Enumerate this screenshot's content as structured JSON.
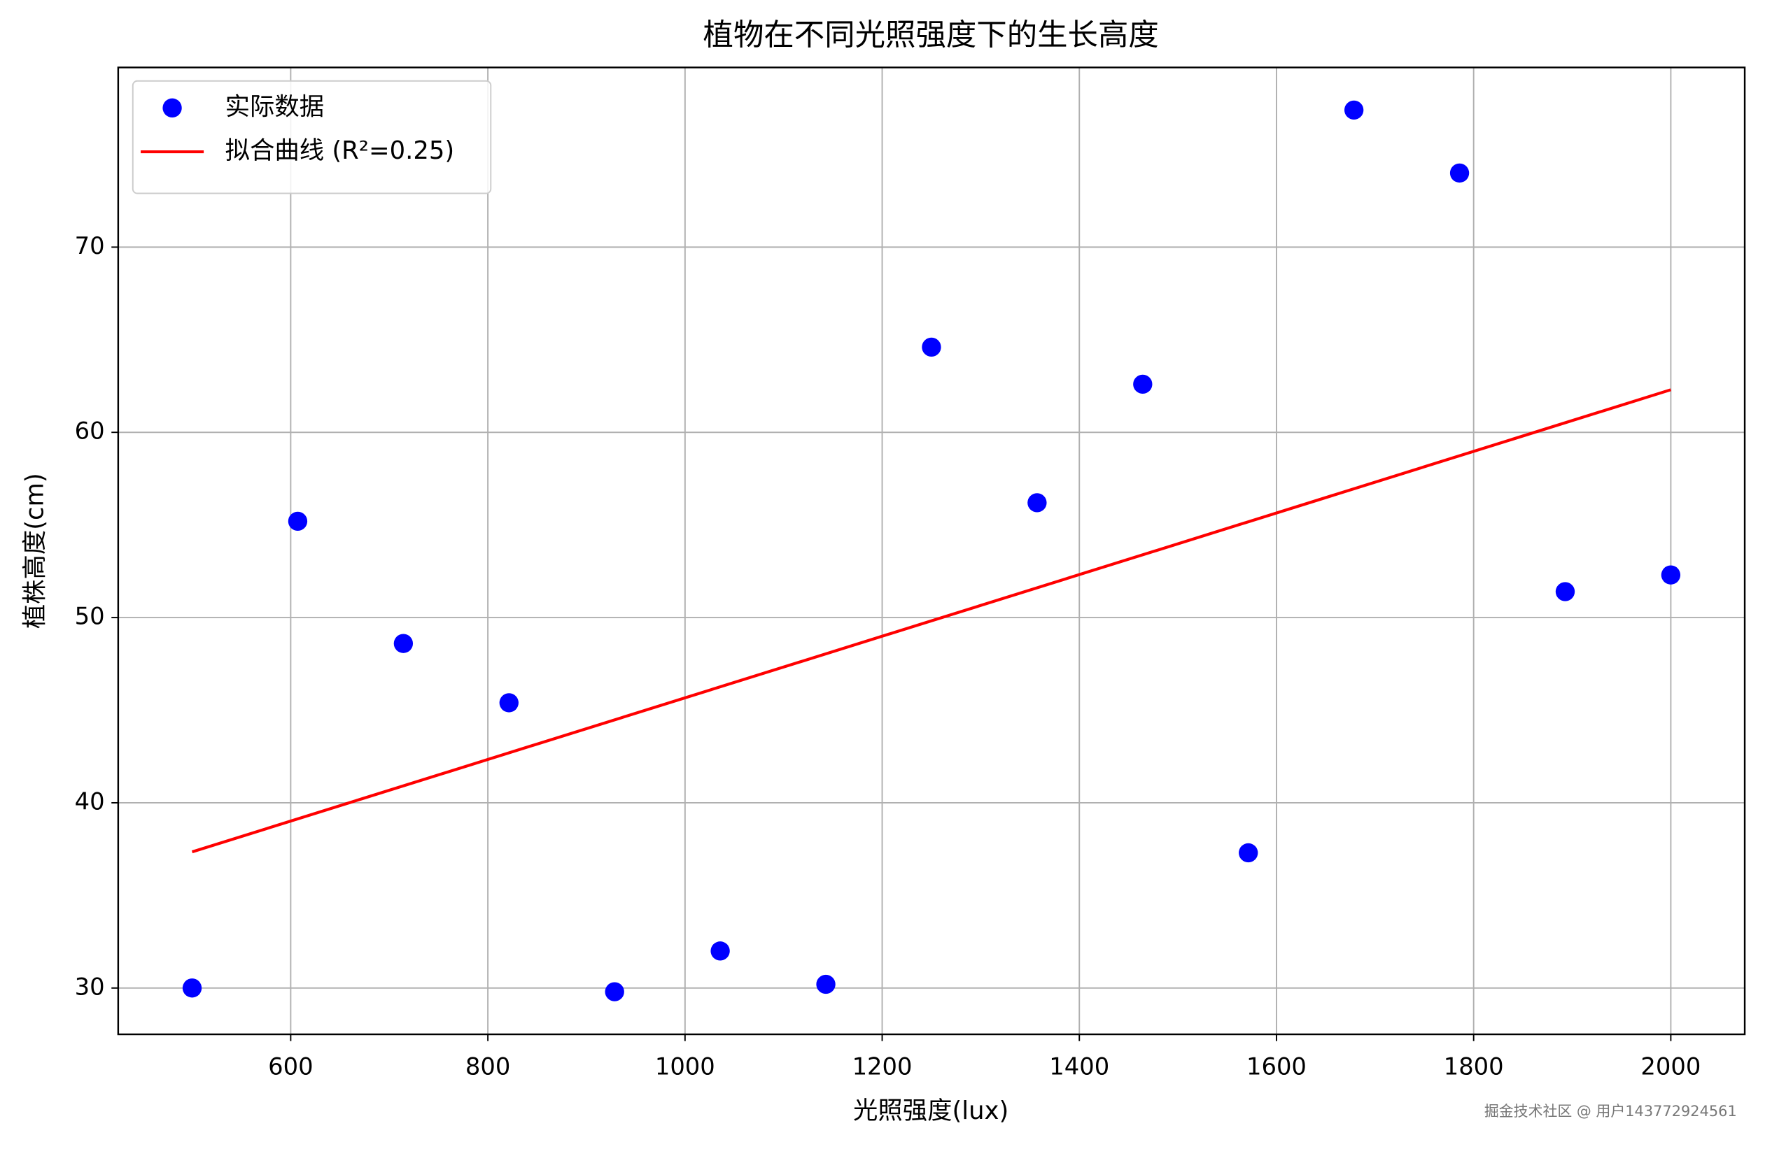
{
  "chart_data": {
    "type": "scatter",
    "title": "植物在不同光照强度下的生长高度",
    "xlabel": "光照强度(lux)",
    "ylabel": "植株高度(cm)",
    "series": [
      {
        "name": "实际数据",
        "type": "scatter",
        "color": "#0000ff",
        "x": [
          500,
          607.14,
          714.29,
          821.43,
          928.57,
          1035.71,
          1142.86,
          1250,
          1357.14,
          1464.29,
          1571.43,
          1678.57,
          1785.71,
          1892.86,
          2000
        ],
        "values": [
          30.0,
          55.2,
          48.6,
          45.4,
          29.8,
          32.0,
          30.2,
          64.6,
          56.2,
          62.6,
          37.3,
          77.4,
          74.0,
          51.4,
          52.3
        ]
      },
      {
        "name": "拟合曲线 (R²=0.25)",
        "type": "line",
        "color": "#ff0000",
        "x": [
          500,
          2000
        ],
        "values": [
          37.35,
          62.3
        ]
      }
    ],
    "xlim": [
      425,
      2075
    ],
    "ylim": [
      27.5,
      79.7
    ],
    "xticks": [
      600,
      800,
      1000,
      1200,
      1400,
      1600,
      1800,
      2000
    ],
    "yticks": [
      30,
      40,
      50,
      60,
      70
    ],
    "grid": true,
    "legend": "upper left",
    "watermark": "掘金技术社区 @ 用户143772924561"
  }
}
